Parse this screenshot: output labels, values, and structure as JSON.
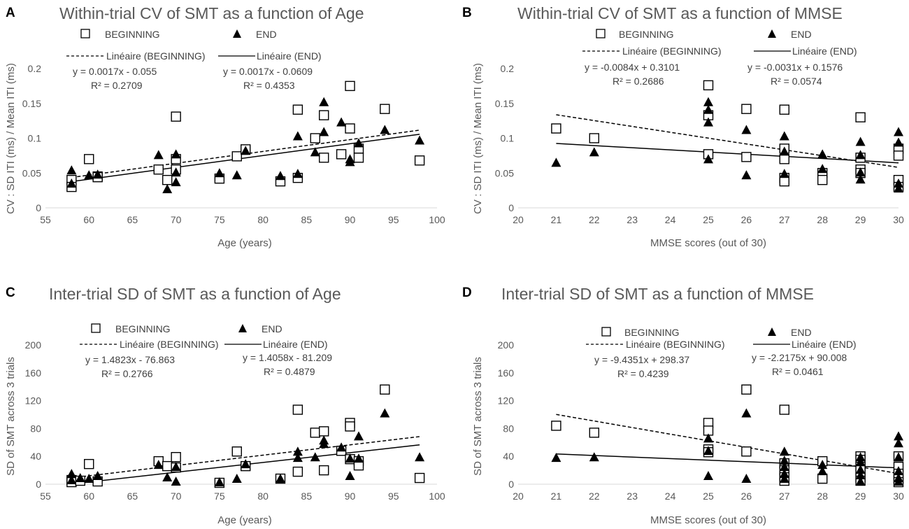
{
  "chart_data": [
    {
      "id": "A",
      "type": "scatter",
      "letter": "A",
      "title": "Within-trial CV of SMT as a function of Age",
      "xlabel": "Age (years)",
      "ylabel": "CV : SD ITI (ms) / Mean ITI (ms)",
      "xlim": [
        55,
        100
      ],
      "ylim": [
        0,
        0.2
      ],
      "xticks": [
        55,
        60,
        65,
        70,
        75,
        80,
        85,
        90,
        95,
        100
      ],
      "yticks": [
        0,
        0.05,
        0.1,
        0.15,
        0.2
      ],
      "ytick_labels": [
        "0",
        "0.05",
        "0.1",
        "0.15",
        "0.2"
      ],
      "legend": {
        "beginning": "BEGINNING",
        "end": "END",
        "trend_beginning": "Linéaire (BEGINNING)",
        "trend_end": "Linéaire (END)"
      },
      "equations": {
        "beginning": "y = 0.0017x - 0.055",
        "beginning_r2": "R² = 0.2709",
        "end": "y = 0.0017x - 0.0609",
        "end_r2": "R² = 0.4353"
      },
      "trend_beginning": {
        "slope": 0.0017,
        "intercept": -0.055,
        "x_range": [
          58,
          98
        ]
      },
      "trend_end": {
        "slope": 0.0017,
        "intercept": -0.0609,
        "x_range": [
          58,
          98
        ]
      },
      "series": [
        {
          "name": "BEGINNING",
          "marker": "square",
          "points": [
            [
              58,
              0.04
            ],
            [
              58,
              0.03
            ],
            [
              60,
              0.07
            ],
            [
              61,
              0.045
            ],
            [
              61,
              0.044
            ],
            [
              68,
              0.055
            ],
            [
              69,
              0.04
            ],
            [
              70,
              0.131
            ],
            [
              70,
              0.07
            ],
            [
              70,
              0.055
            ],
            [
              75,
              0.042
            ],
            [
              77,
              0.074
            ],
            [
              78,
              0.084
            ],
            [
              82,
              0.038
            ],
            [
              84,
              0.141
            ],
            [
              84,
              0.043
            ],
            [
              86,
              0.1
            ],
            [
              87,
              0.133
            ],
            [
              87,
              0.072
            ],
            [
              89,
              0.077
            ],
            [
              90,
              0.175
            ],
            [
              90,
              0.114
            ],
            [
              91,
              0.085
            ],
            [
              91,
              0.072
            ],
            [
              94,
              0.142
            ],
            [
              98,
              0.068
            ]
          ]
        },
        {
          "name": "END",
          "marker": "triangle",
          "points": [
            [
              58,
              0.053
            ],
            [
              58,
              0.034
            ],
            [
              60,
              0.046
            ],
            [
              61,
              0.047
            ],
            [
              68,
              0.075
            ],
            [
              69,
              0.026
            ],
            [
              70,
              0.076
            ],
            [
              70,
              0.05
            ],
            [
              70,
              0.036
            ],
            [
              75,
              0.049
            ],
            [
              77,
              0.046
            ],
            [
              78,
              0.081
            ],
            [
              82,
              0.045
            ],
            [
              84,
              0.102
            ],
            [
              84,
              0.048
            ],
            [
              86,
              0.079
            ],
            [
              87,
              0.151
            ],
            [
              87,
              0.108
            ],
            [
              89,
              0.122
            ],
            [
              90,
              0.065
            ],
            [
              90,
              0.069
            ],
            [
              91,
              0.092
            ],
            [
              94,
              0.111
            ],
            [
              98,
              0.096
            ]
          ]
        }
      ]
    },
    {
      "id": "B",
      "type": "scatter",
      "letter": "B",
      "title": "Within-trial CV of SMT as a function of MMSE",
      "xlabel": "MMSE scores (out of 30)",
      "ylabel": "CV : SD ITI (ms) / Mean ITI (ms)",
      "xlim": [
        20,
        30
      ],
      "ylim": [
        0,
        0.2
      ],
      "xticks": [
        20,
        21,
        22,
        23,
        24,
        25,
        26,
        27,
        28,
        29,
        30
      ],
      "yticks": [
        0,
        0.05,
        0.1,
        0.15,
        0.2
      ],
      "ytick_labels": [
        "0",
        "0.05",
        "0.1",
        "0.15",
        "0.2"
      ],
      "legend": {
        "beginning": "BEGINNING",
        "end": "END",
        "trend_beginning": "Linéaire (BEGINNING)",
        "trend_end": "Linéaire (END)"
      },
      "equations": {
        "beginning": "y = -0.0084x + 0.3101",
        "beginning_r2": "R² = 0.2686",
        "end": "y = -0.0031x + 0.1576",
        "end_r2": "R² = 0.0574"
      },
      "trend_beginning": {
        "slope": -0.0084,
        "intercept": 0.3101,
        "x_range": [
          21,
          30
        ]
      },
      "trend_end": {
        "slope": -0.0031,
        "intercept": 0.1576,
        "x_range": [
          21,
          30
        ]
      },
      "series": [
        {
          "name": "BEGINNING",
          "marker": "square",
          "points": [
            [
              21,
              0.114
            ],
            [
              22,
              0.1
            ],
            [
              25,
              0.176
            ],
            [
              25,
              0.133
            ],
            [
              25,
              0.077
            ],
            [
              26,
              0.142
            ],
            [
              26,
              0.073
            ],
            [
              27,
              0.141
            ],
            [
              27,
              0.085
            ],
            [
              27,
              0.07
            ],
            [
              27,
              0.043
            ],
            [
              27,
              0.038
            ],
            [
              28,
              0.05
            ],
            [
              28,
              0.04
            ],
            [
              29,
              0.13
            ],
            [
              29,
              0.072
            ],
            [
              29,
              0.055
            ],
            [
              29,
              0.05
            ],
            [
              30,
              0.085
            ],
            [
              30,
              0.075
            ],
            [
              30,
              0.04
            ],
            [
              30,
              0.03
            ]
          ]
        },
        {
          "name": "END",
          "marker": "triangle",
          "points": [
            [
              21,
              0.064
            ],
            [
              22,
              0.079
            ],
            [
              25,
              0.151
            ],
            [
              25,
              0.14
            ],
            [
              25,
              0.122
            ],
            [
              25,
              0.069
            ],
            [
              26,
              0.111
            ],
            [
              26,
              0.046
            ],
            [
              27,
              0.102
            ],
            [
              27,
              0.08
            ],
            [
              27,
              0.048
            ],
            [
              28,
              0.076
            ],
            [
              28,
              0.055
            ],
            [
              29,
              0.094
            ],
            [
              29,
              0.075
            ],
            [
              29,
              0.05
            ],
            [
              29,
              0.04
            ],
            [
              30,
              0.108
            ],
            [
              30,
              0.093
            ],
            [
              30,
              0.034
            ],
            [
              30,
              0.027
            ]
          ]
        }
      ]
    },
    {
      "id": "C",
      "type": "scatter",
      "letter": "C",
      "title": "Inter-trial SD of SMT as a function of Age",
      "xlabel": "Age (years)",
      "ylabel": "SD  of SMT across 3 trials",
      "xlim": [
        55,
        100
      ],
      "ylim": [
        0,
        200
      ],
      "xticks": [
        55,
        60,
        65,
        70,
        75,
        80,
        85,
        90,
        95,
        100
      ],
      "yticks": [
        0,
        40,
        80,
        120,
        160,
        200
      ],
      "ytick_labels": [
        "0",
        "40",
        "80",
        "120",
        "160",
        "200"
      ],
      "legend": {
        "beginning": "BEGINNING",
        "end": "END",
        "trend_beginning": "Linéaire (BEGINNING)",
        "trend_end": "Linéaire (END)"
      },
      "equations": {
        "beginning": "y = 1.4823x - 76.863",
        "beginning_r2": "R² = 0.2766",
        "end": "y = 1.4058x - 81.209",
        "end_r2": "R² = 0.4879"
      },
      "trend_beginning": {
        "slope": 1.4823,
        "intercept": -76.863,
        "x_range": [
          58,
          98
        ]
      },
      "trend_end": {
        "slope": 1.4058,
        "intercept": -81.209,
        "x_range": [
          58,
          98
        ]
      },
      "series": [
        {
          "name": "BEGINNING",
          "marker": "square",
          "points": [
            [
              58,
              6
            ],
            [
              58,
              3
            ],
            [
              59,
              5
            ],
            [
              60,
              29
            ],
            [
              61,
              4
            ],
            [
              68,
              33
            ],
            [
              69,
              26
            ],
            [
              70,
              39
            ],
            [
              70,
              24
            ],
            [
              75,
              2
            ],
            [
              77,
              47
            ],
            [
              78,
              26
            ],
            [
              82,
              8
            ],
            [
              84,
              107
            ],
            [
              84,
              18
            ],
            [
              86,
              74
            ],
            [
              87,
              76
            ],
            [
              87,
              20
            ],
            [
              89,
              48
            ],
            [
              90,
              88
            ],
            [
              90,
              83
            ],
            [
              90,
              36
            ],
            [
              91,
              33
            ],
            [
              91,
              27
            ],
            [
              94,
              136
            ],
            [
              98,
              9
            ]
          ]
        },
        {
          "name": "END",
          "marker": "triangle",
          "points": [
            [
              58,
              14
            ],
            [
              58,
              5
            ],
            [
              59,
              8
            ],
            [
              60,
              7
            ],
            [
              61,
              11
            ],
            [
              68,
              27
            ],
            [
              69,
              9
            ],
            [
              70,
              24
            ],
            [
              70,
              3
            ],
            [
              75,
              2
            ],
            [
              77,
              7
            ],
            [
              78,
              28
            ],
            [
              82,
              7
            ],
            [
              84,
              46
            ],
            [
              84,
              37
            ],
            [
              86,
              38
            ],
            [
              87,
              62
            ],
            [
              87,
              57
            ],
            [
              89,
              52
            ],
            [
              90,
              11
            ],
            [
              90,
              36
            ],
            [
              91,
              68
            ],
            [
              91,
              36
            ],
            [
              94,
              101
            ],
            [
              98,
              38
            ]
          ]
        }
      ]
    },
    {
      "id": "D",
      "type": "scatter",
      "letter": "D",
      "title": "Inter-trial SD of SMT as a function of MMSE",
      "xlabel": "MMSE scores (out of 30)",
      "ylabel": "SD of SMT across 3 trials",
      "xlim": [
        20,
        30
      ],
      "ylim": [
        0,
        200
      ],
      "xticks": [
        20,
        21,
        22,
        23,
        24,
        25,
        26,
        27,
        28,
        29,
        30
      ],
      "yticks": [
        0,
        40,
        80,
        120,
        160,
        200
      ],
      "ytick_labels": [
        "0",
        "40",
        "80",
        "120",
        "160",
        "200"
      ],
      "legend": {
        "beginning": "BEGINNING",
        "end": "END",
        "trend_beginning": "Linéaire (BEGINNING)",
        "trend_end": "Linéaire (END)"
      },
      "equations": {
        "beginning": "y = -9.4351x + 298.37",
        "beginning_r2": "R² = 0.4239",
        "end": "y = -2.2175x + 90.008",
        "end_r2": "R² = 0.0461"
      },
      "trend_beginning": {
        "slope": -9.4351,
        "intercept": 298.37,
        "x_range": [
          21,
          30
        ]
      },
      "trend_end": {
        "slope": -2.2175,
        "intercept": 90.008,
        "x_range": [
          21,
          30
        ]
      },
      "series": [
        {
          "name": "BEGINNING",
          "marker": "square",
          "points": [
            [
              21,
              84
            ],
            [
              22,
              74
            ],
            [
              25,
              88
            ],
            [
              25,
              77
            ],
            [
              25,
              50
            ],
            [
              25,
              46
            ],
            [
              26,
              136
            ],
            [
              26,
              47
            ],
            [
              27,
              107
            ],
            [
              27,
              30
            ],
            [
              27,
              20
            ],
            [
              27,
              10
            ],
            [
              27,
              5
            ],
            [
              28,
              33
            ],
            [
              28,
              8
            ],
            [
              29,
              40
            ],
            [
              29,
              35
            ],
            [
              29,
              25
            ],
            [
              29,
              20
            ],
            [
              29,
              10
            ],
            [
              29,
              5
            ],
            [
              30,
              40
            ],
            [
              30,
              25
            ],
            [
              30,
              15
            ],
            [
              30,
              8
            ],
            [
              30,
              3
            ]
          ]
        },
        {
          "name": "END",
          "marker": "triangle",
          "points": [
            [
              21,
              37
            ],
            [
              22,
              38
            ],
            [
              25,
              65
            ],
            [
              25,
              47
            ],
            [
              25,
              11
            ],
            [
              26,
              101
            ],
            [
              26,
              7
            ],
            [
              27,
              46
            ],
            [
              27,
              33
            ],
            [
              27,
              24
            ],
            [
              27,
              14
            ],
            [
              27,
              7
            ],
            [
              28,
              27
            ],
            [
              28,
              18
            ],
            [
              29,
              38
            ],
            [
              29,
              31
            ],
            [
              29,
              20
            ],
            [
              29,
              12
            ],
            [
              29,
              3
            ],
            [
              30,
              68
            ],
            [
              30,
              58
            ],
            [
              30,
              38
            ],
            [
              30,
              18
            ],
            [
              30,
              8
            ],
            [
              30,
              3
            ]
          ]
        }
      ]
    }
  ]
}
